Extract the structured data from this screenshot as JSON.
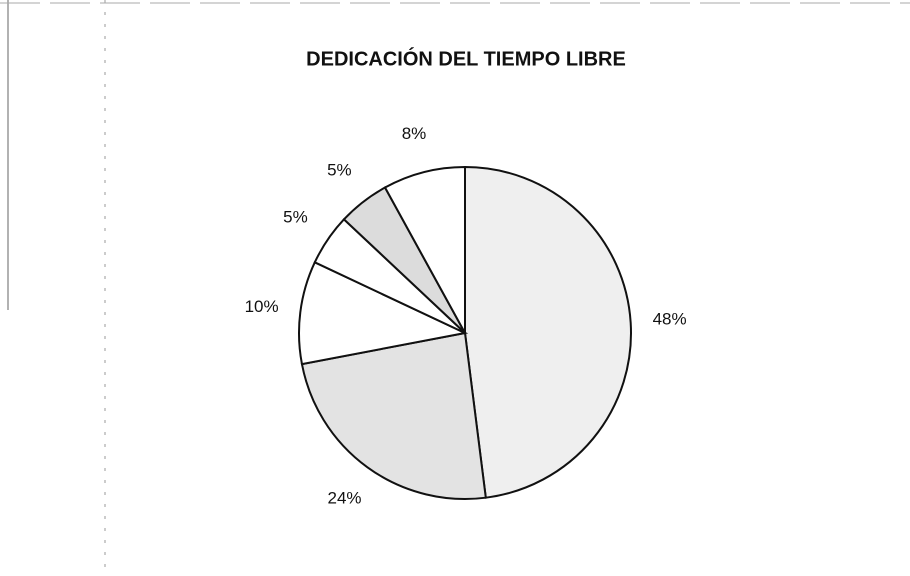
{
  "chart_data": {
    "type": "pie",
    "title": "DEDICACIÓN DEL TIEMPO LIBRE",
    "values": [
      48,
      24,
      10,
      5,
      5,
      8
    ],
    "value_labels": [
      "48%",
      "24%",
      "10%",
      "5%",
      "5%",
      "8%"
    ],
    "colors": [
      "#efefef",
      "#e3e3e3",
      "#ffffff",
      "#ffffff",
      "#dcdcdc",
      "#ffffff"
    ]
  }
}
